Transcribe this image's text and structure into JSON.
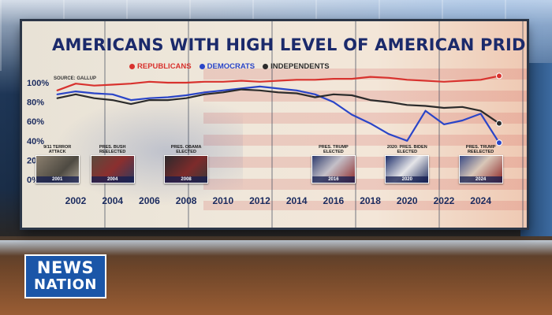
{
  "logo": {
    "line1": "NEWS",
    "line2": "NATION"
  },
  "colors": {
    "republicans": "#d8322e",
    "democrats": "#2a45c8",
    "independents": "#2b2b2b",
    "title": "#1b2a6b"
  },
  "events": [
    {
      "caption": "9/11 TERROR ATTACK",
      "year": "2001",
      "year_value": 2001
    },
    {
      "caption": "PRES. BUSH REELECTED",
      "year": "2004",
      "year_value": 2004
    },
    {
      "caption": "PRES. OBAMA ELECTED",
      "year": "2008",
      "year_value": 2008
    },
    {
      "caption": "PRES. TRUMP ELECTED",
      "year": "2016",
      "year_value": 2016
    },
    {
      "caption": "2020: PRES. BIDEN ELECTED",
      "year": "2020",
      "year_value": 2020
    },
    {
      "caption": "PRES. TRUMP REELECTED",
      "year": "2024",
      "year_value": 2024
    }
  ],
  "chart_data": {
    "type": "line",
    "title": "AMERICANS WITH HIGH LEVEL OF AMERICAN PRIDE",
    "source": "SOURCE: GALLUP",
    "xlabel": "",
    "ylabel": "",
    "xlim": [
      2000.8,
      2025.3
    ],
    "ylim": [
      0,
      100
    ],
    "x_ticks": [
      2002,
      2004,
      2006,
      2008,
      2010,
      2012,
      2014,
      2016,
      2018,
      2020,
      2022,
      2024
    ],
    "y_ticks": [
      0,
      20,
      40,
      60,
      80,
      100
    ],
    "y_tick_labels": [
      "0%",
      "20%",
      "40%",
      "60%",
      "80%",
      "100%"
    ],
    "grid": false,
    "legend_position": "top",
    "series": [
      {
        "name": "REPUBLICANS",
        "x": [
          2001,
          2002,
          2003,
          2004,
          2005,
          2006,
          2007,
          2008,
          2009,
          2010,
          2011,
          2012,
          2013,
          2014,
          2015,
          2016,
          2017,
          2018,
          2019,
          2020,
          2021,
          2022,
          2023,
          2024,
          2025
        ],
        "values": [
          92,
          99,
          97,
          98,
          99,
          101,
          100,
          100,
          101,
          101,
          102,
          101,
          102,
          103,
          103,
          104,
          104,
          106,
          105,
          103,
          102,
          101,
          102,
          103,
          107
        ]
      },
      {
        "name": "DEMOCRATS",
        "x": [
          2001,
          2002,
          2003,
          2004,
          2005,
          2006,
          2007,
          2008,
          2009,
          2010,
          2011,
          2012,
          2013,
          2014,
          2015,
          2016,
          2017,
          2018,
          2019,
          2020,
          2021,
          2022,
          2023,
          2024,
          2025
        ],
        "values": [
          88,
          91,
          89,
          88,
          82,
          84,
          85,
          87,
          90,
          92,
          94,
          96,
          94,
          92,
          88,
          80,
          67,
          58,
          47,
          40,
          71,
          57,
          61,
          68,
          38
        ]
      },
      {
        "name": "INDEPENDENTS",
        "x": [
          2001,
          2002,
          2003,
          2004,
          2005,
          2006,
          2007,
          2008,
          2009,
          2010,
          2011,
          2012,
          2013,
          2014,
          2015,
          2016,
          2017,
          2018,
          2019,
          2020,
          2021,
          2022,
          2023,
          2024,
          2025
        ],
        "values": [
          84,
          88,
          84,
          82,
          78,
          82,
          82,
          84,
          88,
          90,
          93,
          92,
          90,
          89,
          85,
          88,
          87,
          82,
          80,
          77,
          76,
          74,
          75,
          71,
          58
        ]
      }
    ]
  }
}
